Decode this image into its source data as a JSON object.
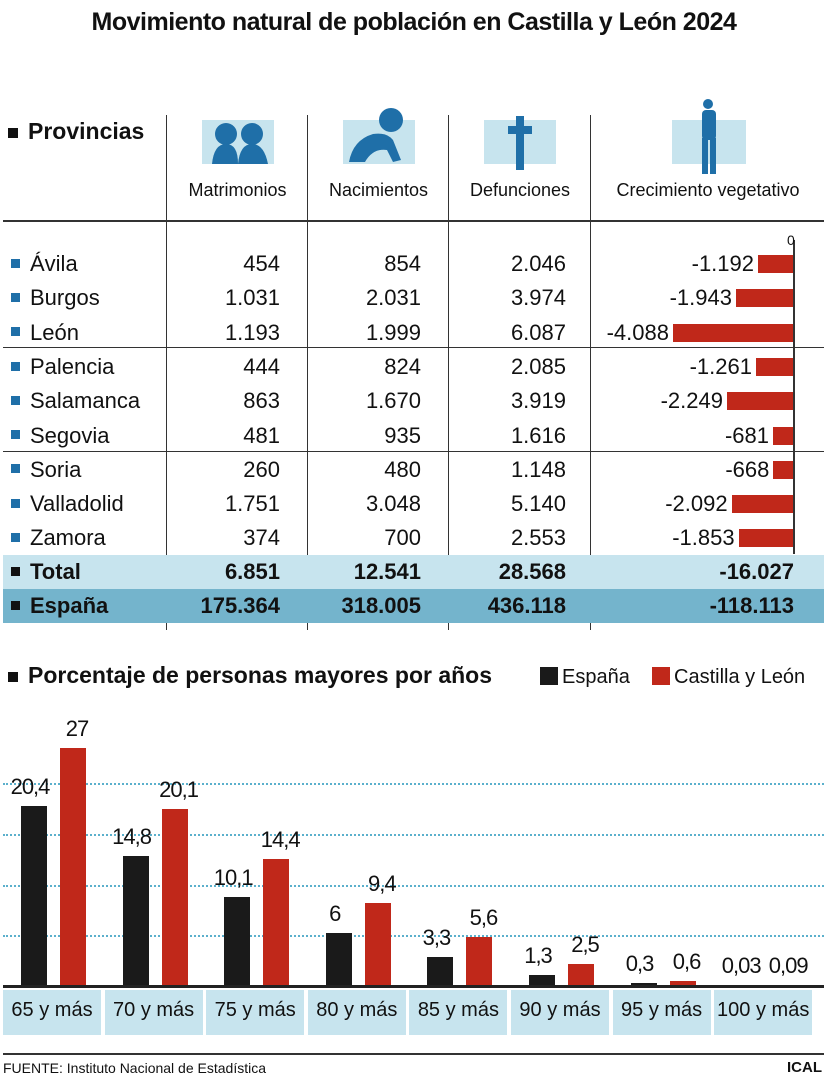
{
  "title": "Movimiento natural de población en Castilla y León 2024",
  "table": {
    "header": "Provincias",
    "columns": [
      "Matrimonios",
      "Nacimientos",
      "Defunciones",
      "Crecimiento vegetativo"
    ],
    "icons": [
      "couple-icon",
      "baby-icon",
      "cross-icon",
      "parent-child-icon"
    ],
    "zero_label": "0",
    "rows": [
      {
        "name": "Ávila",
        "matrimonios": "454",
        "nacimientos": "854",
        "defunciones": "2.046",
        "crecimiento": "-1.192",
        "value": -1192
      },
      {
        "name": "Burgos",
        "matrimonios": "1.031",
        "nacimientos": "2.031",
        "defunciones": "3.974",
        "crecimiento": "-1.943",
        "value": -1943
      },
      {
        "name": "León",
        "matrimonios": "1.193",
        "nacimientos": "1.999",
        "defunciones": "6.087",
        "crecimiento": "-4.088",
        "value": -4088
      },
      {
        "name": "Palencia",
        "matrimonios": "444",
        "nacimientos": "824",
        "defunciones": "2.085",
        "crecimiento": "-1.261",
        "value": -1261
      },
      {
        "name": "Salamanca",
        "matrimonios": "863",
        "nacimientos": "1.670",
        "defunciones": "3.919",
        "crecimiento": "-2.249",
        "value": -2249
      },
      {
        "name": "Segovia",
        "matrimonios": "481",
        "nacimientos": "935",
        "defunciones": "1.616",
        "crecimiento": "-681",
        "value": -681
      },
      {
        "name": "Soria",
        "matrimonios": "260",
        "nacimientos": "480",
        "defunciones": "1.148",
        "crecimiento": "-668",
        "value": -668
      },
      {
        "name": "Valladolid",
        "matrimonios": "1.751",
        "nacimientos": "3.048",
        "defunciones": "5.140",
        "crecimiento": "-2.092",
        "value": -2092
      },
      {
        "name": "Zamora",
        "matrimonios": "374",
        "nacimientos": "700",
        "defunciones": "2.553",
        "crecimiento": "-1.853",
        "value": -1853
      }
    ],
    "total": {
      "name": "Total",
      "matrimonios": "6.851",
      "nacimientos": "12.541",
      "defunciones": "28.568",
      "crecimiento": "-16.027"
    },
    "espana": {
      "name": "España",
      "matrimonios": "175.364",
      "nacimientos": "318.005",
      "defunciones": "436.118",
      "crecimiento": "-118.113"
    },
    "colors": {
      "bar": "#c0281a",
      "accent": "#1f6fa8",
      "light": "#c7e4ee"
    }
  },
  "chart_data": {
    "type": "bar",
    "title": "Porcentaje de personas mayores por años",
    "categories": [
      "65 y más",
      "70 y más",
      "75 y más",
      "80 y más",
      "85 y más",
      "90 y más",
      "95 y más",
      "100 y más"
    ],
    "series": [
      {
        "name": "España",
        "color": "#1a1a1a",
        "values": [
          20.4,
          14.8,
          10.1,
          6,
          3.3,
          1.3,
          0.3,
          0.03
        ],
        "labels": [
          "20,4",
          "14,8",
          "10,1",
          "6",
          "3,3",
          "1,3",
          "0,3",
          "0,03"
        ]
      },
      {
        "name": "Castilla y León",
        "color": "#c0281a",
        "values": [
          27,
          20.1,
          14.4,
          9.4,
          5.6,
          2.5,
          0.6,
          0.09
        ],
        "labels": [
          "27",
          "20,1",
          "14,4",
          "9,4",
          "5,6",
          "2,5",
          "0,6",
          "0,09"
        ]
      }
    ],
    "ylim": [
      0,
      28
    ],
    "grid": true,
    "legend": "top-right"
  },
  "footer": {
    "source": "FUENTE: Instituto Nacional de Estadística",
    "brand": "ICAL"
  }
}
